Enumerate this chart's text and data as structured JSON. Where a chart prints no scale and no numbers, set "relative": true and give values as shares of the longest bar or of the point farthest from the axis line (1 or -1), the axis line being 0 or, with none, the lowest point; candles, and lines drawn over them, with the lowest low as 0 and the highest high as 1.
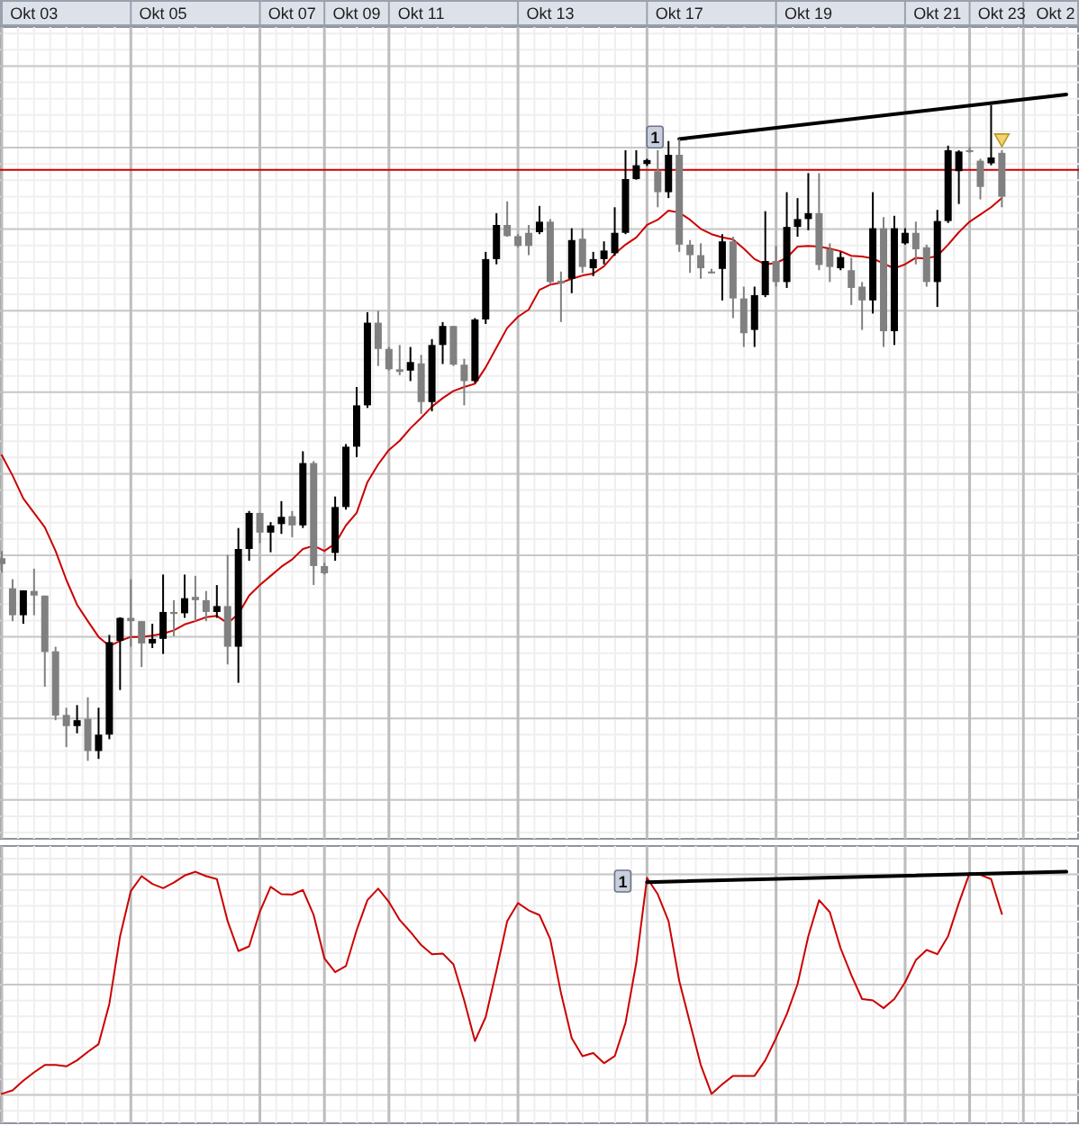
{
  "chart_data": [
    {
      "type": "candlestick",
      "relative": true,
      "grid": true,
      "tick_labels": "x",
      "categories": [
        null,
        null,
        null,
        "Okt 03",
        null,
        null,
        null,
        null,
        null,
        null,
        null,
        null,
        null,
        null,
        null,
        "Okt 05",
        null,
        null,
        null,
        null,
        null,
        null,
        null,
        null,
        null,
        null,
        null,
        "Okt 07",
        null,
        null,
        null,
        null,
        null,
        "Okt 09",
        null,
        null,
        null,
        null,
        null,
        "Okt 11",
        null,
        null,
        null,
        null,
        null,
        null,
        null,
        null,
        null,
        null,
        null,
        "Okt 13",
        null,
        null,
        null,
        null,
        null,
        null,
        null,
        null,
        null,
        null,
        null,
        "Okt 17",
        null,
        null,
        null,
        null,
        null,
        null,
        null,
        null,
        null,
        null,
        null,
        "Okt 19",
        null,
        null,
        null,
        null,
        null,
        null,
        null,
        null,
        null,
        null,
        null,
        "Okt 21",
        null,
        null,
        null,
        null,
        null,
        "Okt 23",
        null,
        null,
        null,
        null,
        "Okt 2",
        null
      ],
      "ohlc": [
        [
          0.309,
          0.32,
          0.287,
          0.3
        ],
        [
          0.263,
          0.277,
          0.213,
          0.222
        ],
        [
          0.222,
          0.26,
          0.209,
          0.26
        ],
        [
          0.259,
          0.293,
          0.222,
          0.252
        ],
        [
          0.252,
          0.252,
          0.113,
          0.166
        ],
        [
          0.167,
          0.174,
          0.062,
          0.069
        ],
        [
          0.07,
          0.081,
          0.021,
          0.053
        ],
        [
          0.053,
          0.085,
          0.042,
          0.062
        ],
        [
          0.064,
          0.097,
          0,
          0.015
        ],
        [
          0.015,
          0.081,
          0.003,
          0.04
        ],
        [
          0.04,
          0.192,
          0.033,
          0.181
        ],
        [
          0.183,
          0.219,
          0.108,
          0.218
        ],
        [
          0.218,
          0.277,
          0.174,
          0.213
        ],
        [
          0.213,
          0.213,
          0.143,
          0.179
        ],
        [
          0.179,
          0.209,
          0.172,
          0.186
        ],
        [
          0.186,
          0.284,
          0.163,
          0.227
        ],
        [
          0.227,
          0.245,
          0.19,
          0.224
        ],
        [
          0.225,
          0.284,
          0.218,
          0.248
        ],
        [
          0.25,
          0.282,
          0.213,
          0.245
        ],
        [
          0.245,
          0.259,
          0.213,
          0.227
        ],
        [
          0.227,
          0.268,
          0.218,
          0.236
        ],
        [
          0.236,
          0.314,
          0.147,
          0.174
        ],
        [
          0.174,
          0.355,
          0.119,
          0.323
        ],
        [
          0.323,
          0.381,
          0.305,
          0.378
        ],
        [
          0.378,
          0.378,
          0.332,
          0.348
        ],
        [
          0.348,
          0.364,
          0.318,
          0.359
        ],
        [
          0.361,
          0.396,
          0.346,
          0.372
        ],
        [
          0.373,
          0.381,
          0.341,
          0.359
        ],
        [
          0.359,
          0.472,
          0.355,
          0.454
        ],
        [
          0.454,
          0.457,
          0.268,
          0.297
        ],
        [
          0.297,
          0.302,
          0.284,
          0.286
        ],
        [
          0.317,
          0.403,
          0.305,
          0.387
        ],
        [
          0.387,
          0.483,
          0.383,
          0.479
        ],
        [
          0.479,
          0.57,
          0.463,
          0.542
        ],
        [
          0.542,
          0.684,
          0.538,
          0.668
        ],
        [
          0.668,
          0.686,
          0.602,
          0.628
        ],
        [
          0.628,
          0.631,
          0.595,
          0.597
        ],
        [
          0.597,
          0.634,
          0.588,
          0.593
        ],
        [
          0.595,
          0.631,
          0.579,
          0.608
        ],
        [
          0.606,
          0.619,
          0.529,
          0.547
        ],
        [
          0.547,
          0.643,
          0.533,
          0.634
        ],
        [
          0.634,
          0.669,
          0.605,
          0.663
        ],
        [
          0.663,
          0.663,
          0.602,
          0.604
        ],
        [
          0.604,
          0.613,
          0.542,
          0.579
        ],
        [
          0.579,
          0.675,
          0.576,
          0.673
        ],
        [
          0.673,
          0.776,
          0.666,
          0.765
        ],
        [
          0.765,
          0.835,
          0.757,
          0.817
        ],
        [
          0.817,
          0.853,
          0.799,
          0.8
        ],
        [
          0.8,
          0.803,
          0.783,
          0.785
        ],
        [
          0.805,
          0.817,
          0.771,
          0.785
        ],
        [
          0.806,
          0.846,
          0.803,
          0.822
        ],
        [
          0.822,
          0.826,
          0.726,
          0.73
        ],
        [
          0.732,
          0.746,
          0.669,
          0.728
        ],
        [
          0.735,
          0.812,
          0.713,
          0.794
        ],
        [
          0.796,
          0.812,
          0.744,
          0.753
        ],
        [
          0.751,
          0.776,
          0.739,
          0.765
        ],
        [
          0.765,
          0.792,
          0.757,
          0.778
        ],
        [
          0.774,
          0.844,
          0.77,
          0.805
        ],
        [
          0.805,
          0.931,
          0.803,
          0.887
        ],
        [
          0.887,
          0.931,
          0.886,
          0.908
        ],
        [
          0.91,
          0.918,
          0.907,
          0.916
        ],
        [
          0.899,
          0.931,
          0.844,
          0.867
        ],
        [
          0.867,
          0.945,
          0.858,
          0.924
        ],
        [
          0.924,
          0.948,
          0.776,
          0.787
        ],
        [
          0.787,
          0.794,
          0.744,
          0.771
        ],
        [
          0.771,
          0.789,
          0.735,
          0.751
        ],
        [
          0.746,
          0.75,
          0.743,
          0.744
        ],
        [
          0.75,
          0.803,
          0.702,
          0.792
        ],
        [
          0.792,
          0.799,
          0.675,
          0.705
        ],
        [
          0.705,
          0.723,
          0.631,
          0.652
        ],
        [
          0.657,
          0.723,
          0.631,
          0.71
        ],
        [
          0.71,
          0.838,
          0.707,
          0.762
        ],
        [
          0.762,
          0.785,
          0.723,
          0.73
        ],
        [
          0.73,
          0.867,
          0.721,
          0.814
        ],
        [
          0.814,
          0.858,
          0.799,
          0.826
        ],
        [
          0.826,
          0.896,
          0.809,
          0.835
        ],
        [
          0.835,
          0.896,
          0.748,
          0.756
        ],
        [
          0.78,
          0.789,
          0.73,
          0.753
        ],
        [
          0.751,
          0.776,
          0.748,
          0.768
        ],
        [
          0.748,
          0.767,
          0.695,
          0.721
        ],
        [
          0.723,
          0.73,
          0.657,
          0.702
        ],
        [
          0.702,
          0.867,
          0.682,
          0.812
        ],
        [
          0.812,
          0.829,
          0.631,
          0.655
        ],
        [
          0.655,
          0.831,
          0.634,
          0.812
        ],
        [
          0.789,
          0.812,
          0.787,
          0.805
        ],
        [
          0.805,
          0.822,
          0.757,
          0.78
        ],
        [
          0.783,
          0.787,
          0.723,
          0.73
        ],
        [
          0.73,
          0.84,
          0.692,
          0.823
        ],
        [
          0.823,
          0.938,
          0.82,
          0.931
        ],
        [
          0.899,
          0.931,
          0.849,
          0.929
        ],
        [
          0.931,
          0.936,
          0.927,
          0.929
        ],
        [
          0.915,
          0.918,
          0.856,
          0.875
        ],
        [
          0.911,
          1,
          0.908,
          0.92
        ],
        [
          0.927,
          0.931,
          0.844,
          0.86
        ],
        null,
        null,
        null,
        null,
        null,
        null
      ],
      "colors": [
        "#808080",
        "#808080",
        "#000000",
        "#808080",
        "#808080",
        "#808080",
        "#808080",
        "#000000",
        "#808080",
        "#000000",
        "#000000",
        "#000000",
        "#808080",
        "#808080",
        "#000000",
        "#000000",
        "#808080",
        "#000000",
        "#808080",
        "#808080",
        "#000000",
        "#808080",
        "#000000",
        "#000000",
        "#808080",
        "#000000",
        "#000000",
        "#808080",
        "#000000",
        "#808080",
        "#808080",
        "#000000",
        "#000000",
        "#000000",
        "#000000",
        "#808080",
        "#808080",
        "#808080",
        "#000000",
        "#808080",
        "#000000",
        "#000000",
        "#808080",
        "#808080",
        "#000000",
        "#000000",
        "#000000",
        "#808080",
        "#808080",
        "#808080",
        "#000000",
        "#808080",
        "#808080",
        "#000000",
        "#808080",
        "#000000",
        "#000000",
        "#000000",
        "#000000",
        "#000000",
        "#000000",
        "#808080",
        "#000000",
        "#808080",
        "#808080",
        "#808080",
        "#808080",
        "#000000",
        "#808080",
        "#808080",
        "#000000",
        "#000000",
        "#808080",
        "#000000",
        "#000000",
        "#000000",
        "#808080",
        "#808080",
        "#000000",
        "#808080",
        "#808080",
        "#000000",
        "#808080",
        "#000000",
        "#000000",
        "#808080",
        "#808080",
        "#000000",
        "#000000",
        "#000000",
        "#808080",
        "#808080",
        "#000000",
        "#808080",
        null,
        null,
        null,
        null,
        null,
        null
      ],
      "series": [
        {
          "type": "line",
          "color": "#cc0000",
          "values": [
            0.466,
            0.435,
            0.4,
            0.378,
            0.356,
            0.32,
            0.276,
            0.238,
            0.213,
            0.189,
            0.175,
            0.183,
            0.189,
            0.189,
            0.191,
            0.194,
            0.199,
            0.208,
            0.213,
            0.219,
            0.221,
            0.21,
            0.224,
            0.252,
            0.268,
            0.282,
            0.296,
            0.307,
            0.323,
            0.328,
            0.32,
            0.331,
            0.359,
            0.378,
            0.425,
            0.452,
            0.474,
            0.488,
            0.507,
            0.523,
            0.54,
            0.553,
            0.564,
            0.57,
            0.575,
            0.6,
            0.63,
            0.66,
            0.677,
            0.688,
            0.718,
            0.726,
            0.729,
            0.735,
            0.74,
            0.743,
            0.754,
            0.773,
            0.787,
            0.798,
            0.817,
            0.825,
            0.839,
            0.836,
            0.825,
            0.811,
            0.803,
            0.798,
            0.795,
            0.781,
            0.765,
            0.757,
            0.759,
            0.767,
            0.784,
            0.785,
            0.784,
            0.781,
            0.777,
            0.77,
            0.769,
            0.766,
            0.758,
            0.751,
            0.757,
            0.767,
            0.766,
            0.77,
            0.787,
            0.806,
            0.822,
            0.833,
            0.844,
            0.858,
            null,
            null,
            null,
            null,
            null,
            null
          ]
        },
        {
          "type": "line",
          "color": "#000000",
          "values": [
            null,
            null,
            null,
            null,
            null,
            null,
            null,
            null,
            null,
            null,
            null,
            null,
            null,
            null,
            null,
            null,
            null,
            null,
            null,
            null,
            null,
            null,
            null,
            null,
            null,
            null,
            null,
            null,
            null,
            null,
            null,
            null,
            null,
            null,
            null,
            null,
            null,
            null,
            null,
            null,
            null,
            null,
            null,
            null,
            null,
            null,
            null,
            null,
            null,
            null,
            null,
            null,
            null,
            null,
            null,
            null,
            null,
            null,
            null,
            null,
            null,
            null,
            null,
            0.948,
            null,
            null,
            null,
            null,
            null,
            null,
            null,
            null,
            null,
            null,
            null,
            null,
            null,
            null,
            null,
            null,
            null,
            null,
            null,
            null,
            null,
            null,
            null,
            null,
            null,
            null,
            null,
            null,
            null,
            null,
            null,
            null,
            null,
            null,
            null,
            1.016
          ]
        }
      ],
      "ref_lines": [
        {
          "axis": "y",
          "value": 0.901,
          "color": "#cc0000"
        }
      ],
      "annotations": [
        {
          "text": "1",
          "y": 0.951
        }
      ]
    },
    {
      "type": "line",
      "relative": true,
      "grid": true,
      "tick_labels": false,
      "categories": [
        null,
        null,
        null,
        null,
        null,
        null,
        null,
        null,
        null,
        null,
        null,
        null,
        null,
        null,
        null,
        null,
        null,
        null,
        null,
        null,
        null,
        null,
        null,
        null,
        null,
        null,
        null,
        null,
        null,
        null,
        null,
        null,
        null,
        null,
        null,
        null,
        null,
        null,
        null,
        null,
        null,
        null,
        null,
        null,
        null,
        null,
        null,
        null,
        null,
        null,
        null,
        null,
        null,
        null,
        null,
        null,
        null,
        null,
        null,
        null,
        null,
        null,
        null,
        null,
        null,
        null,
        null,
        null,
        null,
        null,
        null,
        null,
        null,
        null,
        null,
        null,
        null,
        null,
        null,
        null,
        null,
        null,
        null,
        null,
        null,
        null,
        null,
        null,
        null,
        null,
        null,
        null,
        null,
        null,
        null,
        null,
        null,
        null,
        null,
        null
      ],
      "series": [
        {
          "color": "#cc0000",
          "values": [
            0,
            0.016,
            0.059,
            0.097,
            0.13,
            0.13,
            0.124,
            0.151,
            0.189,
            0.224,
            0.405,
            0.71,
            0.913,
            0.98,
            0.945,
            0.926,
            0.951,
            0.983,
            1,
            0.98,
            0.967,
            0.778,
            0.643,
            0.664,
            0.821,
            0.932,
            0.899,
            0.897,
            0.918,
            0.805,
            0.61,
            0.548,
            0.575,
            0.737,
            0.872,
            0.924,
            0.864,
            0.783,
            0.729,
            0.67,
            0.629,
            0.632,
            0.583,
            0.421,
            0.238,
            0.346,
            0.556,
            0.778,
            0.859,
            0.826,
            0.805,
            0.697,
            0.454,
            0.251,
            0.17,
            0.184,
            0.138,
            0.17,
            0.319,
            0.589,
            0.972,
            0.899,
            0.778,
            0.508,
            0.319,
            0.13,
            0,
            0.043,
            0.081,
            0.081,
            0.081,
            0.151,
            0.251,
            0.359,
            0.494,
            0.71,
            0.872,
            0.818,
            0.656,
            0.535,
            0.427,
            0.421,
            0.386,
            0.427,
            0.502,
            0.602,
            0.648,
            0.629,
            0.71,
            0.859,
            0.994,
            0.986,
            0.967,
            0.81,
            null,
            null,
            null,
            null,
            null,
            null
          ]
        },
        {
          "color": "#000000",
          "values": [
            null,
            null,
            null,
            null,
            null,
            null,
            null,
            null,
            null,
            null,
            null,
            null,
            null,
            null,
            null,
            null,
            null,
            null,
            null,
            null,
            null,
            null,
            null,
            null,
            null,
            null,
            null,
            null,
            null,
            null,
            null,
            null,
            null,
            null,
            null,
            null,
            null,
            null,
            null,
            null,
            null,
            null,
            null,
            null,
            null,
            null,
            null,
            null,
            null,
            null,
            null,
            null,
            null,
            null,
            null,
            null,
            null,
            null,
            null,
            null,
            0.953,
            null,
            null,
            null,
            null,
            null,
            null,
            null,
            null,
            null,
            null,
            null,
            null,
            null,
            null,
            null,
            null,
            null,
            null,
            null,
            null,
            null,
            null,
            null,
            null,
            null,
            null,
            null,
            null,
            null,
            null,
            null,
            null,
            null,
            null,
            null,
            null,
            null,
            null,
            1
          ]
        }
      ],
      "ref_lines": [
        {
          "axis": "y",
          "value": 0.492,
          "color": "#c8c8c8"
        }
      ],
      "annotations": [
        {
          "text": "1",
          "y": 0.958
        }
      ]
    }
  ]
}
